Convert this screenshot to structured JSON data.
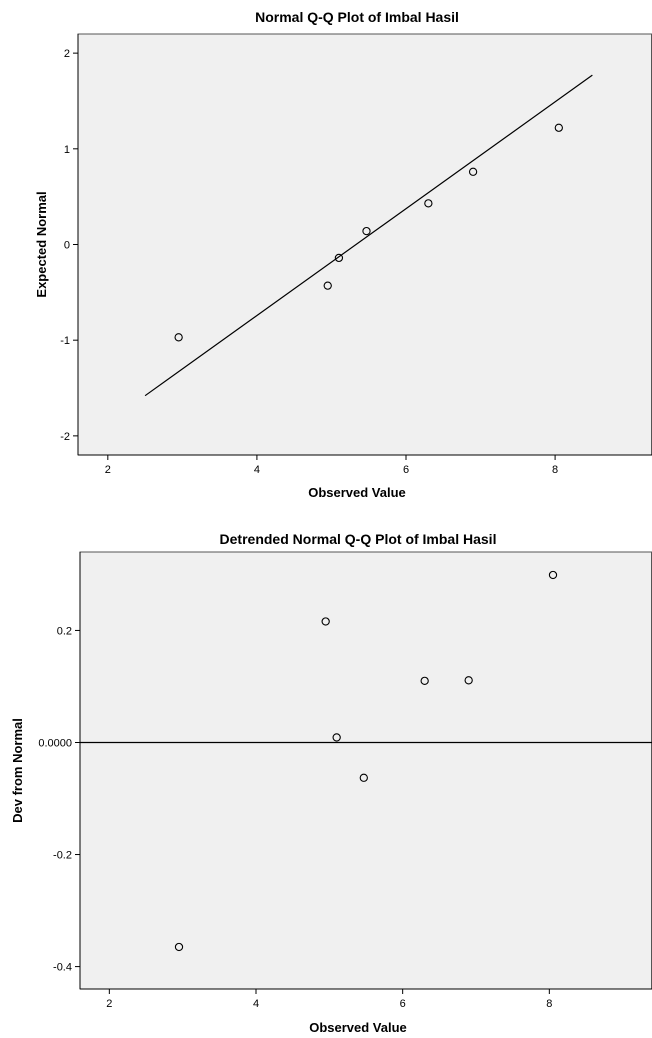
{
  "chart_data": [
    {
      "type": "scatter",
      "title": "Normal Q-Q Plot of Imbal Hasil",
      "xlabel": "Observed Value",
      "ylabel": "Expected Normal",
      "xlim": [
        1.6,
        9.3
      ],
      "ylim": [
        -2.2,
        2.2
      ],
      "xticks": [
        2,
        4,
        6,
        8
      ],
      "xtick_labels": [
        "2",
        "4",
        "6",
        "8"
      ],
      "yticks": [
        2,
        1,
        0,
        -1,
        -2
      ],
      "ytick_labels": [
        "2",
        "1",
        "0",
        "-1",
        "-2"
      ],
      "grid": false,
      "points": [
        {
          "x": 2.95,
          "y": -0.97
        },
        {
          "x": 4.95,
          "y": -0.43
        },
        {
          "x": 5.1,
          "y": -0.14
        },
        {
          "x": 5.47,
          "y": 0.14
        },
        {
          "x": 6.3,
          "y": 0.43
        },
        {
          "x": 6.9,
          "y": 0.76
        },
        {
          "x": 8.05,
          "y": 1.22
        }
      ],
      "reference_line": {
        "x": [
          2.5,
          8.5
        ],
        "y": [
          -1.58,
          1.77
        ]
      }
    },
    {
      "type": "scatter",
      "title": "Detrended Normal Q-Q Plot of Imbal Hasil",
      "xlabel": "Observed Value",
      "ylabel": "Dev from Normal",
      "xlim": [
        1.6,
        9.4
      ],
      "ylim": [
        -0.44,
        0.34
      ],
      "xticks": [
        2,
        4,
        6,
        8
      ],
      "xtick_labels": [
        "2",
        "4",
        "6",
        "8"
      ],
      "yticks": [
        0.2,
        0.0,
        -0.2,
        -0.4
      ],
      "ytick_labels": [
        "0.2",
        "0.0000",
        "-0.2",
        "-0.4"
      ],
      "grid": false,
      "points": [
        {
          "x": 2.95,
          "y": -0.365
        },
        {
          "x": 4.95,
          "y": 0.216
        },
        {
          "x": 5.1,
          "y": 0.009
        },
        {
          "x": 5.47,
          "y": -0.063
        },
        {
          "x": 6.3,
          "y": 0.11
        },
        {
          "x": 6.9,
          "y": 0.111
        },
        {
          "x": 8.05,
          "y": 0.299
        }
      ],
      "reference_line": {
        "y": 0
      }
    }
  ]
}
